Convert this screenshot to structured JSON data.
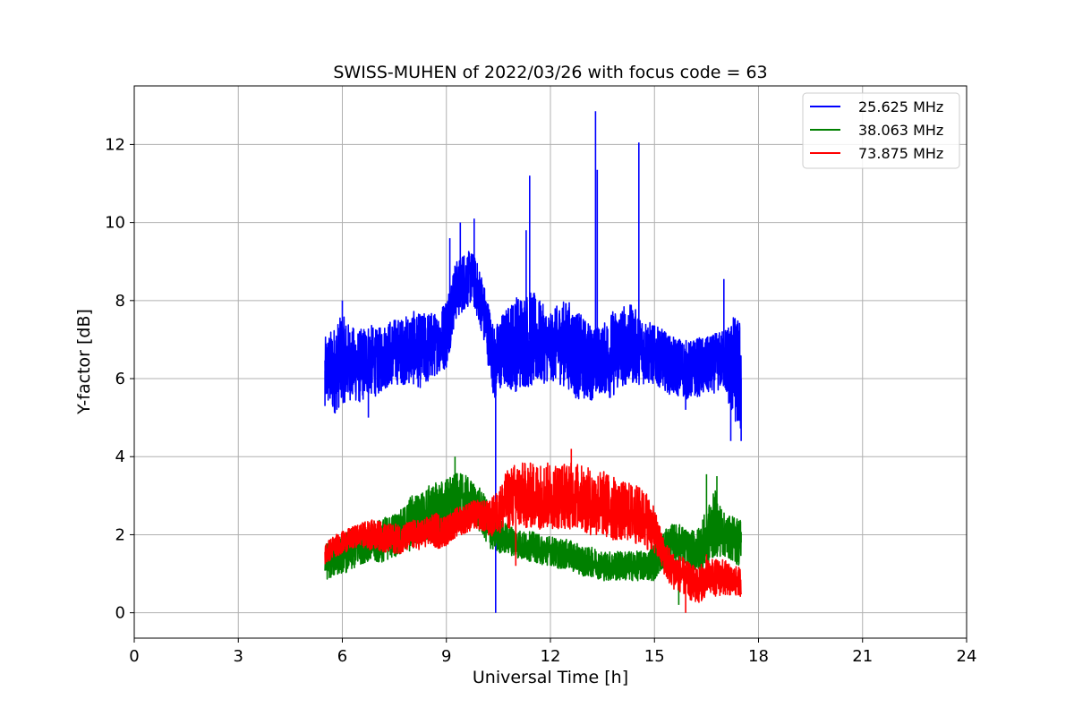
{
  "chart_data": {
    "type": "line",
    "title": "SWISS-MUHEN of 2022/03/26 with focus code = 63",
    "xlabel": "Universal Time [h]",
    "ylabel": "Y-factor [dB]",
    "xlim": [
      0,
      24
    ],
    "ylim": [
      -0.65,
      13.5
    ],
    "xticks": [
      0,
      3,
      6,
      9,
      12,
      15,
      18,
      21,
      24
    ],
    "yticks": [
      0,
      2,
      4,
      6,
      8,
      10,
      12
    ],
    "grid": true,
    "legend_position": "top-right",
    "series": [
      {
        "name": "25.625 MHz",
        "color": "#0000ff",
        "x": [
          5.5,
          5.75,
          6.0,
          6.25,
          6.5,
          6.75,
          7.0,
          7.25,
          7.5,
          7.75,
          8.0,
          8.25,
          8.5,
          8.75,
          9.0,
          9.25,
          9.5,
          9.75,
          10.0,
          10.25,
          10.4,
          10.5,
          10.75,
          11.0,
          11.25,
          11.5,
          11.75,
          12.0,
          12.25,
          12.5,
          12.75,
          13.0,
          13.25,
          13.5,
          13.75,
          14.0,
          14.25,
          14.5,
          14.75,
          15.0,
          15.25,
          15.5,
          15.75,
          16.0,
          16.25,
          16.5,
          16.75,
          17.0,
          17.25,
          17.5
        ],
        "mid": [
          6.2,
          6.2,
          6.5,
          6.4,
          6.3,
          6.5,
          6.4,
          6.6,
          6.7,
          6.7,
          6.8,
          6.7,
          6.8,
          6.9,
          7.2,
          8.2,
          8.5,
          8.6,
          8.0,
          7.0,
          6.3,
          6.6,
          6.8,
          6.9,
          7.0,
          7.0,
          6.9,
          6.8,
          6.9,
          6.9,
          6.6,
          6.5,
          6.4,
          6.5,
          6.6,
          6.8,
          6.9,
          6.8,
          6.7,
          6.6,
          6.5,
          6.3,
          6.3,
          6.2,
          6.3,
          6.3,
          6.4,
          6.5,
          6.3,
          6.0
        ],
        "amp": [
          0.9,
          1.2,
          1.2,
          1.0,
          1.0,
          1.0,
          0.9,
          0.9,
          0.9,
          0.9,
          1.0,
          1.0,
          1.0,
          0.8,
          1.0,
          0.8,
          0.8,
          0.7,
          0.8,
          0.9,
          1.0,
          1.0,
          1.1,
          1.3,
          1.3,
          1.3,
          1.1,
          0.9,
          1.1,
          1.2,
          1.2,
          1.1,
          1.0,
          0.9,
          1.2,
          1.1,
          1.1,
          1.0,
          0.9,
          0.8,
          0.8,
          0.8,
          0.8,
          0.8,
          0.8,
          0.8,
          0.8,
          0.8,
          1.4,
          1.6
        ],
        "spikes": [
          [
            5.5,
            5.3
          ],
          [
            6.0,
            8.0
          ],
          [
            6.75,
            5.0
          ],
          [
            9.1,
            9.6
          ],
          [
            9.4,
            10.0
          ],
          [
            9.8,
            10.1
          ],
          [
            10.42,
            0.0
          ],
          [
            11.3,
            9.8
          ],
          [
            11.4,
            11.2
          ],
          [
            13.3,
            12.85
          ],
          [
            13.35,
            11.35
          ],
          [
            14.55,
            12.05
          ],
          [
            15.9,
            5.2
          ],
          [
            17.0,
            8.55
          ],
          [
            17.2,
            4.4
          ],
          [
            17.5,
            4.4
          ]
        ]
      },
      {
        "name": "38.063 MHz",
        "color": "#008000",
        "x": [
          5.5,
          5.75,
          6.0,
          6.25,
          6.5,
          6.75,
          7.0,
          7.25,
          7.5,
          7.75,
          8.0,
          8.25,
          8.5,
          8.75,
          9.0,
          9.25,
          9.5,
          9.75,
          10.0,
          10.25,
          10.5,
          10.75,
          11.0,
          11.25,
          11.5,
          11.75,
          12.0,
          12.25,
          12.5,
          12.75,
          13.0,
          13.25,
          13.5,
          13.75,
          14.0,
          14.25,
          14.5,
          14.75,
          15.0,
          15.25,
          15.5,
          15.75,
          16.0,
          16.25,
          16.5,
          16.75,
          17.0,
          17.25,
          17.5
        ],
        "mid": [
          1.3,
          1.4,
          1.5,
          1.6,
          1.7,
          1.8,
          1.8,
          1.9,
          2.0,
          2.1,
          2.3,
          2.4,
          2.5,
          2.6,
          2.7,
          2.9,
          2.9,
          2.8,
          2.6,
          2.2,
          2.0,
          1.9,
          1.8,
          1.7,
          1.7,
          1.6,
          1.6,
          1.5,
          1.5,
          1.4,
          1.3,
          1.3,
          1.2,
          1.2,
          1.2,
          1.2,
          1.2,
          1.2,
          1.3,
          1.6,
          1.8,
          1.8,
          1.6,
          1.6,
          1.9,
          2.3,
          2.0,
          1.9,
          1.8
        ],
        "amp": [
          0.5,
          0.5,
          0.5,
          0.6,
          0.5,
          0.5,
          0.6,
          0.6,
          0.6,
          0.6,
          0.8,
          0.7,
          0.8,
          0.8,
          0.8,
          0.7,
          0.7,
          0.6,
          0.6,
          0.6,
          0.5,
          0.4,
          0.4,
          0.4,
          0.4,
          0.4,
          0.4,
          0.4,
          0.4,
          0.4,
          0.4,
          0.4,
          0.4,
          0.4,
          0.4,
          0.4,
          0.4,
          0.4,
          0.5,
          0.5,
          0.5,
          0.5,
          0.5,
          0.6,
          0.8,
          0.9,
          0.6,
          0.6,
          0.7
        ],
        "spikes": [
          [
            9.25,
            4.0
          ],
          [
            15.7,
            0.2
          ],
          [
            16.5,
            3.55
          ],
          [
            16.8,
            3.5
          ],
          [
            17.5,
            2.05
          ]
        ]
      },
      {
        "name": "73.875 MHz",
        "color": "#ff0000",
        "x": [
          5.5,
          5.75,
          6.0,
          6.25,
          6.5,
          6.75,
          7.0,
          7.25,
          7.5,
          7.75,
          8.0,
          8.25,
          8.5,
          8.75,
          9.0,
          9.25,
          9.5,
          9.75,
          10.0,
          10.25,
          10.5,
          10.75,
          11.0,
          11.25,
          11.5,
          11.75,
          12.0,
          12.25,
          12.5,
          12.75,
          13.0,
          13.25,
          13.5,
          13.75,
          14.0,
          14.25,
          14.5,
          14.75,
          15.0,
          15.25,
          15.5,
          15.75,
          16.0,
          16.25,
          16.5,
          16.75,
          17.0,
          17.25,
          17.5
        ],
        "mid": [
          1.5,
          1.7,
          1.8,
          1.9,
          2.0,
          2.0,
          2.0,
          1.9,
          1.9,
          1.9,
          2.0,
          2.0,
          2.1,
          2.1,
          2.1,
          2.3,
          2.4,
          2.5,
          2.5,
          2.4,
          2.6,
          2.9,
          3.0,
          3.0,
          3.0,
          3.0,
          3.0,
          3.0,
          3.0,
          3.0,
          2.9,
          2.8,
          2.8,
          2.7,
          2.6,
          2.6,
          2.5,
          2.4,
          2.1,
          1.5,
          1.1,
          1.0,
          0.8,
          0.7,
          0.9,
          0.9,
          0.9,
          0.8,
          0.8
        ],
        "amp": [
          0.3,
          0.3,
          0.3,
          0.3,
          0.3,
          0.4,
          0.4,
          0.4,
          0.4,
          0.4,
          0.4,
          0.4,
          0.4,
          0.5,
          0.4,
          0.4,
          0.4,
          0.4,
          0.4,
          0.5,
          0.6,
          0.8,
          0.9,
          0.9,
          0.9,
          0.9,
          0.9,
          0.9,
          0.9,
          0.9,
          0.9,
          0.9,
          0.9,
          0.9,
          0.8,
          0.8,
          0.8,
          0.8,
          0.6,
          0.5,
          0.5,
          0.5,
          0.5,
          0.5,
          0.5,
          0.5,
          0.5,
          0.4,
          0.4
        ],
        "spikes": [
          [
            11.0,
            1.2
          ],
          [
            12.6,
            4.2
          ],
          [
            15.9,
            0.0
          ],
          [
            16.5,
            1.5
          ]
        ]
      }
    ]
  }
}
